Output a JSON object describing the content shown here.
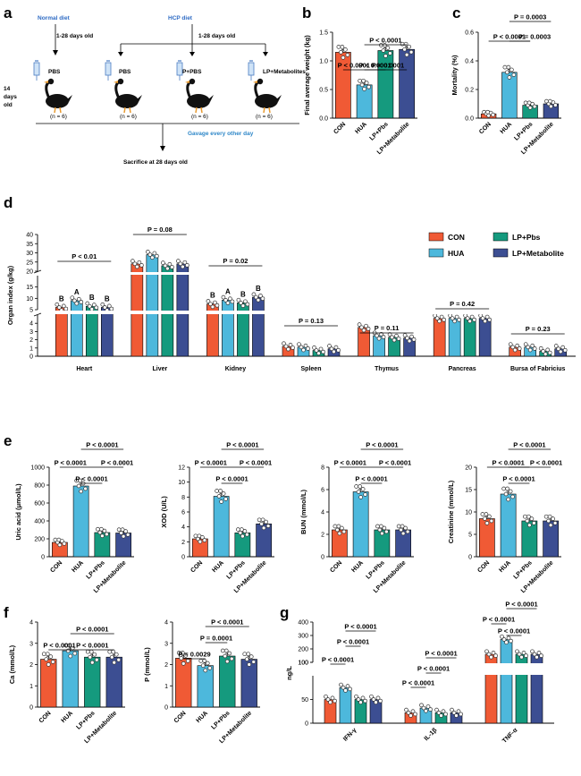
{
  "colors": {
    "CON": "#f05a35",
    "HUA": "#4db8dc",
    "LP+Pbs": "#159a7e",
    "LP+Metabolite": "#3c4e92"
  },
  "panel_labels": {
    "a": "a",
    "b": "b",
    "c": "c",
    "d": "d",
    "e": "e",
    "f": "f",
    "g": "g"
  },
  "schematic": {
    "normal_diet": "Normal diet",
    "hcp_diet": "HCP diet",
    "days_1_28_a": "1-28 days old",
    "days_1_28_b": "1-28 days old",
    "day14_line1": "14",
    "day14_line2": "days",
    "day14_line3": "old",
    "groups": [
      "PBS",
      "PBS",
      "LP+PBS",
      "LP+Metabolites"
    ],
    "n": [
      "(n = 6)",
      "(n = 6)",
      "(n = 6)",
      "(n = 6)"
    ],
    "gavage": "Gavage every other day",
    "sacrifice": "Sacrifice at 28 days old"
  },
  "legend": [
    "CON",
    "HUA",
    "LP+Pbs",
    "LP+Metabolite"
  ],
  "chart_data": [
    {
      "id": "b",
      "type": "bar",
      "ylabel": "Final average weight (kg)",
      "ylim": [
        0,
        1.5
      ],
      "yticks": [
        "0.0",
        "0.5",
        "1.0",
        "1.5"
      ],
      "categories": [
        "CON",
        "HUA",
        "LP+Pbs",
        "LP+Metabolite"
      ],
      "values": [
        1.15,
        0.58,
        1.18,
        1.2
      ],
      "annotations": [
        "P < 0.0001",
        "P < 0.0001",
        "P < 0.0001",
        "P < 0.0001"
      ]
    },
    {
      "id": "c",
      "type": "bar",
      "ylabel": "Mortality (%)",
      "ylim": [
        0,
        0.6
      ],
      "yticks": [
        "0.0",
        "0.2",
        "0.4",
        "0.6"
      ],
      "categories": [
        "CON",
        "HUA",
        "LP+Pbs",
        "LP+Metabolite"
      ],
      "values": [
        0.03,
        0.32,
        0.09,
        0.1
      ],
      "annotations": [
        "P < 0.0001",
        "P = 0.0003",
        "P = 0.0003"
      ]
    },
    {
      "id": "d",
      "type": "bar",
      "ylabel": "Organ index (g/kg)",
      "yticks_upper": [
        "25",
        "30",
        "35",
        "40"
      ],
      "yticks_mid": [
        "5",
        "10",
        "15",
        "20"
      ],
      "yticks_lower": [
        "0",
        "1",
        "2",
        "3",
        "4",
        "5"
      ],
      "series": [
        {
          "name": "CON",
          "values": [
            6,
            24,
            7.5,
            1.2,
            3.5,
            4.6,
            1.1
          ]
        },
        {
          "name": "HUA",
          "values": [
            9,
            29,
            9.2,
            1.1,
            2.5,
            4.6,
            1.1
          ]
        },
        {
          "name": "LP+Pbs",
          "values": [
            6.5,
            23,
            8,
            0.7,
            2.3,
            4.6,
            0.6
          ]
        },
        {
          "name": "LP+Metabolite",
          "values": [
            6,
            24,
            10.5,
            0.9,
            2.2,
            4.6,
            0.9
          ]
        }
      ],
      "categories": [
        "Heart",
        "Liver",
        "Kidney",
        "Spleen",
        "Thymus",
        "Pancreas",
        "Bursa of Fabricius"
      ],
      "annotations": [
        "P < 0.01",
        "P = 0.08",
        "P = 0.02",
        "P = 0.13",
        "P = 0.11",
        "P = 0.42",
        "P = 0.23"
      ],
      "letters": {
        "Heart": [
          "B",
          "A",
          "B",
          "B"
        ],
        "Kidney": [
          "B",
          "A",
          "B",
          "B"
        ]
      }
    },
    {
      "id": "e1",
      "type": "bar",
      "ylabel": "Uric acid (μmol/L)",
      "ylim": [
        0,
        1000
      ],
      "yticks": [
        "0",
        "200",
        "400",
        "600",
        "800",
        "1000"
      ],
      "categories": [
        "CON",
        "HUA",
        "LP+Pbs",
        "LP+Metabolite"
      ],
      "values": [
        160,
        790,
        270,
        265
      ],
      "annotations": [
        "P < 0.0001",
        "P < 0.0001",
        "P < 0.0001",
        "P < 0.0001"
      ]
    },
    {
      "id": "e2",
      "type": "bar",
      "ylabel": "XOD (U/L)",
      "ylim": [
        0,
        12
      ],
      "yticks": [
        "0",
        "2",
        "4",
        "6",
        "8",
        "10",
        "12"
      ],
      "categories": [
        "CON",
        "HUA",
        "LP+Pbs",
        "LP+Metabolite"
      ],
      "values": [
        2.4,
        8.1,
        3.2,
        4.4
      ],
      "annotations": [
        "P < 0.0001",
        "P < 0.0001",
        "P < 0.0001",
        "P < 0.0001"
      ]
    },
    {
      "id": "e3",
      "type": "bar",
      "ylabel": "BUN (mmol/L)",
      "ylim": [
        0,
        8
      ],
      "yticks": [
        "0",
        "2",
        "4",
        "6",
        "8"
      ],
      "categories": [
        "CON",
        "HUA",
        "LP+Pbs",
        "LP+Metabolite"
      ],
      "values": [
        2.4,
        5.8,
        2.4,
        2.4
      ],
      "annotations": [
        "P < 0.0001",
        "P < 0.0001",
        "P < 0.0001",
        "P < 0.0001"
      ]
    },
    {
      "id": "e4",
      "type": "bar",
      "ylabel": "Creatinine (mmol/L)",
      "ylim": [
        0,
        20
      ],
      "yticks": [
        "0",
        "5",
        "10",
        "15",
        "20"
      ],
      "categories": [
        "CON",
        "HUA",
        "LP+Pbs",
        "LP+Metabolite"
      ],
      "values": [
        8.5,
        14,
        8,
        8
      ],
      "annotations": [
        "P < 0.0001",
        "P < 0.0001",
        "P < 0.0001",
        "P < 0.0001"
      ]
    },
    {
      "id": "f1",
      "type": "bar",
      "ylabel": "Ca (mmol/L)",
      "ylim": [
        0,
        4
      ],
      "yticks": [
        "0",
        "1",
        "2",
        "3",
        "4"
      ],
      "categories": [
        "CON",
        "HUA",
        "LP+Pbs",
        "LP+Metabolite"
      ],
      "values": [
        2.25,
        2.65,
        2.35,
        2.35
      ],
      "annotations": [
        "P < 0.0001",
        "P < 0.0001",
        "P < 0.0001"
      ]
    },
    {
      "id": "f2",
      "type": "bar",
      "ylabel": "P (mmol/L)",
      "ylim": [
        0,
        4
      ],
      "yticks": [
        "0",
        "1",
        "2",
        "3",
        "4"
      ],
      "categories": [
        "CON",
        "HUA",
        "LP+Pbs",
        "LP+Metabolite"
      ],
      "values": [
        2.3,
        1.95,
        2.4,
        2.25
      ],
      "annotations": [
        "P = 0.0029",
        "P = 0.0001",
        "P < 0.0001"
      ]
    },
    {
      "id": "g",
      "type": "bar",
      "ylabel": "ng/L",
      "yticks_upper": [
        "100",
        "200",
        "300",
        "400"
      ],
      "yticks_lower": [
        "0",
        "50",
        "100"
      ],
      "categories": [
        "IFN-γ",
        "IL-1β",
        "TNF-α"
      ],
      "series": [
        {
          "name": "CON",
          "values": [
            50,
            22,
            160
          ]
        },
        {
          "name": "HUA",
          "values": [
            75,
            32,
            270
          ]
        },
        {
          "name": "LP+Pbs",
          "values": [
            50,
            22,
            160
          ]
        },
        {
          "name": "LP+Metabolite",
          "values": [
            50,
            22,
            160
          ]
        }
      ],
      "annotations": [
        "P < 0.0001",
        "P < 0.0001",
        "P < 0.0001",
        "P < 0.0001",
        "P < 0.0001",
        "P < 0.0001",
        "P < 0.0001",
        "P < 0.0001",
        "P < 0.0001"
      ]
    }
  ]
}
